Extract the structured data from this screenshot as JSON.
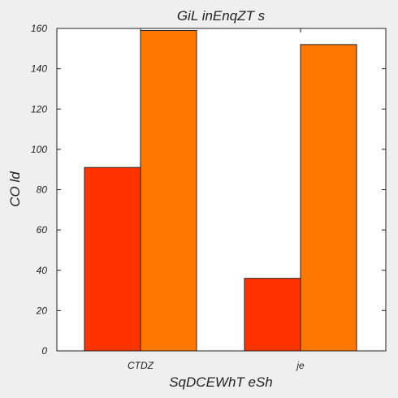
{
  "chart_data": {
    "type": "bar",
    "title": "GiL inEnqZT s",
    "xlabel": "SqDCEWhT eSh",
    "ylabel": "CO ld",
    "categories": [
      "CTDZ",
      "je"
    ],
    "series": [
      {
        "values": [
          91,
          36
        ],
        "color": "#ff3300"
      },
      {
        "values": [
          159,
          152
        ],
        "color": "#ff7700"
      }
    ],
    "ylim": [
      0,
      160
    ],
    "yticks": [
      0,
      20,
      40,
      60,
      80,
      100,
      120,
      140,
      160
    ],
    "grid": false,
    "legend": "none",
    "background": "#efefef",
    "plot_background": "#ffffff"
  }
}
